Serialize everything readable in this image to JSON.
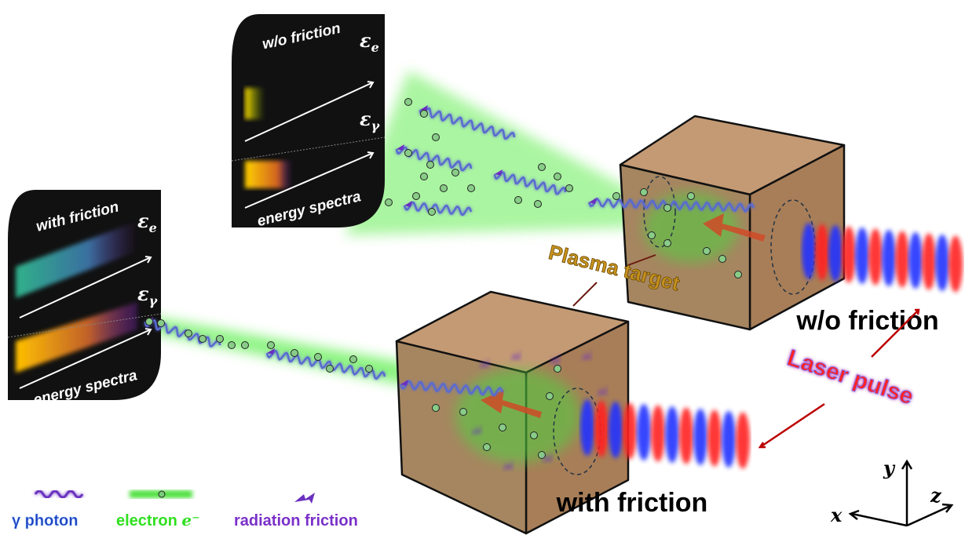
{
  "panels": [
    {
      "title": "w/o friction",
      "electron_label": {
        "symbol": "ε",
        "sub": "e"
      },
      "photon_label": {
        "symbol": "ε",
        "sub": "γ"
      },
      "caption": "energy spectra"
    },
    {
      "title": "with friction",
      "electron_label": {
        "symbol": "ε",
        "sub": "e"
      },
      "photon_label": {
        "symbol": "ε",
        "sub": "γ"
      },
      "caption": "energy spectra"
    }
  ],
  "target_label": "Plasma target",
  "setups": [
    "w/o friction",
    "with friction"
  ],
  "laser_label": "Laser pulse",
  "legend": [
    {
      "label": "γ photon"
    },
    {
      "label": "electron",
      "symbol": "e⁻"
    },
    {
      "label": "radiation friction"
    }
  ],
  "axes": {
    "y": "y",
    "z": "z",
    "x": "x"
  }
}
